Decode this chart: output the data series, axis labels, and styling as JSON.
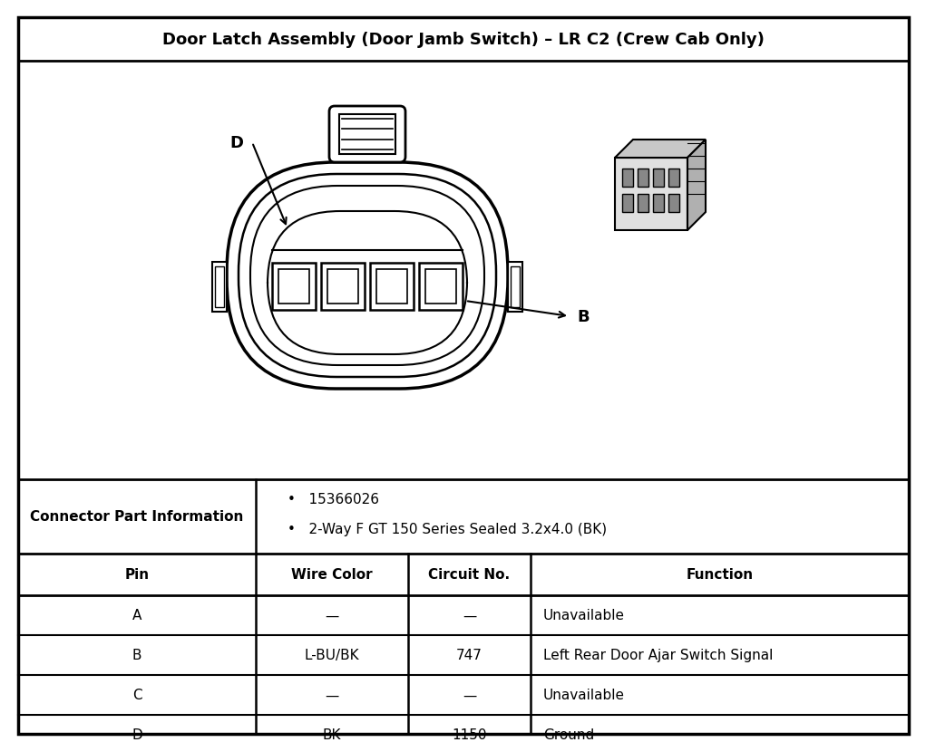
{
  "title": "Door Latch Assembly (Door Jamb Switch) – LR C2 (Crew Cab Only)",
  "connector_label": "Connector Part Information",
  "part_info_bullets": [
    "15366026",
    "2-Way F GT 150 Series Sealed 3.2x4.0 (BK)"
  ],
  "table_headers": [
    "Pin",
    "Wire Color",
    "Circuit No.",
    "Function"
  ],
  "table_rows": [
    [
      "A",
      "—",
      "—",
      "Unavailable"
    ],
    [
      "B",
      "L-BU/BK",
      "747",
      "Left Rear Door Ajar Switch Signal"
    ],
    [
      "C",
      "—",
      "—",
      "Unavailable"
    ],
    [
      "D",
      "BK",
      "1150",
      "Ground"
    ]
  ],
  "border_color": "#000000",
  "bg_color": "#ffffff",
  "text_color": "#000000",
  "diagram_label_D": "D",
  "diagram_label_B": "B",
  "fig_width": 10.02,
  "fig_height": 8.11
}
